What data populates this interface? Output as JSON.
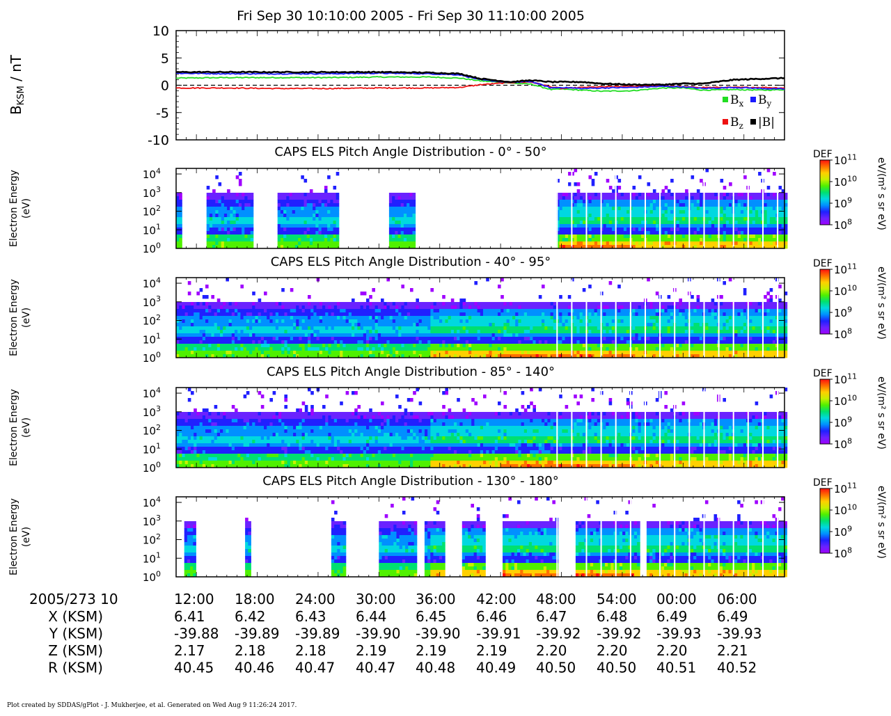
{
  "title": "Fri Sep 30 10:10:00 2005 - Fri Sep 30 11:10:00 2005",
  "footer": "Plot created by SDDAS/gPlot - J. Mukherjee, et al.  Generated on Wed Aug  9 11:26:24 2017.",
  "colors": {
    "bx": "#22dd22",
    "by": "#1a1aff",
    "bz": "#ee1111",
    "bmag": "#000000"
  },
  "time_ticks": [
    "12:00",
    "18:00",
    "24:00",
    "30:00",
    "36:00",
    "42:00",
    "48:00",
    "54:00",
    "00:00",
    "06:00"
  ],
  "ephemeris": {
    "time_label": "2005/273 10",
    "rows": [
      {
        "label": "X (KSM)",
        "values": [
          "6.41",
          "6.42",
          "6.43",
          "6.44",
          "6.45",
          "6.46",
          "6.47",
          "6.48",
          "6.49",
          "6.49"
        ]
      },
      {
        "label": "Y (KSM)",
        "values": [
          "-39.88",
          "-39.89",
          "-39.89",
          "-39.90",
          "-39.90",
          "-39.91",
          "-39.92",
          "-39.92",
          "-39.93",
          "-39.93"
        ]
      },
      {
        "label": "Z (KSM)",
        "values": [
          "2.17",
          "2.18",
          "2.18",
          "2.19",
          "2.19",
          "2.19",
          "2.20",
          "2.20",
          "2.20",
          "2.21"
        ]
      },
      {
        "label": "R (KSM)",
        "values": [
          "40.45",
          "40.46",
          "40.47",
          "40.47",
          "40.48",
          "40.49",
          "40.50",
          "40.50",
          "40.51",
          "40.52"
        ]
      }
    ]
  },
  "chart_data": [
    {
      "type": "line",
      "ylabel_main": "B",
      "ylabel_sub": "KSM",
      "ylabel_unit": " / nT",
      "ylim": [
        -10,
        10
      ],
      "yticks": [
        {
          "v": 10,
          "label": "10"
        },
        {
          "v": 5,
          "label": "5"
        },
        {
          "v": 0,
          "label": "0"
        },
        {
          "v": -5,
          "label": "-5"
        },
        {
          "v": -10,
          "label": "-10"
        }
      ],
      "x_minutes": [
        0,
        5,
        10,
        15,
        20,
        25,
        28,
        30,
        33,
        35,
        37,
        38,
        40,
        42,
        45,
        48,
        50,
        52,
        55,
        58,
        60
      ],
      "series": [
        {
          "key": "bx",
          "name": "B",
          "sub": "x",
          "values": [
            1.3,
            1.4,
            1.4,
            1.4,
            1.5,
            1.5,
            1.3,
            0.8,
            0.4,
            0.2,
            -0.8,
            -0.7,
            -0.9,
            -1.1,
            -1.0,
            -0.5,
            -0.5,
            -0.9,
            -0.8,
            -0.9,
            -0.8
          ]
        },
        {
          "key": "by",
          "name": "B",
          "sub": "y",
          "values": [
            2.2,
            2.1,
            2.1,
            2.1,
            2.2,
            2.1,
            1.9,
            1.0,
            0.5,
            0.7,
            -0.5,
            -0.4,
            -0.6,
            -0.5,
            -0.4,
            -0.2,
            -0.3,
            -0.6,
            -0.4,
            -0.6,
            -0.7
          ]
        },
        {
          "key": "bz",
          "name": "B",
          "sub": "z",
          "values": [
            -0.5,
            -0.5,
            -0.6,
            -0.6,
            -0.5,
            -0.5,
            -0.4,
            0.1,
            0.5,
            0.6,
            -0.3,
            -0.6,
            -0.4,
            -0.3,
            -0.2,
            -0.1,
            -0.3,
            -0.4,
            -0.4,
            -0.4,
            -0.5
          ]
        },
        {
          "key": "bmag",
          "name": "|B|",
          "sub": "",
          "values": [
            2.4,
            2.4,
            2.4,
            2.4,
            2.4,
            2.3,
            2.1,
            1.2,
            0.6,
            0.9,
            0.6,
            0.6,
            0.6,
            0.3,
            0.1,
            0.1,
            0.3,
            0.3,
            1.0,
            1.2,
            1.3
          ]
        }
      ],
      "zero_line": "dashed"
    },
    {
      "type": "heatmap",
      "title": "CAPS ELS Pitch Angle Distribution - 0° - 50°",
      "ylabel": [
        "Electron Energy",
        "(eV)"
      ],
      "yscale": "log",
      "yticks": [
        {
          "base": "10",
          "exp": "4"
        },
        {
          "base": "10",
          "exp": "3"
        },
        {
          "base": "10",
          "exp": "2"
        },
        {
          "base": "10",
          "exp": "1"
        },
        {
          "base": "10",
          "exp": "0"
        }
      ],
      "data_minutes": [
        [
          0,
          0.5
        ],
        [
          3,
          7.5
        ],
        [
          10,
          16
        ],
        [
          21,
          23.5
        ],
        [
          37.5,
          60
        ]
      ],
      "colorbar": {
        "label": "DEF",
        "unit": "eV/(m² s sr eV)",
        "ticks": [
          {
            "base": "10",
            "exp": "11"
          },
          {
            "base": "10",
            "exp": "10"
          },
          {
            "base": "10",
            "exp": "9"
          },
          {
            "base": "10",
            "exp": "8"
          }
        ]
      }
    },
    {
      "type": "heatmap",
      "title": "CAPS ELS Pitch Angle Distribution - 40° - 95°",
      "ylabel": [
        "Electron Energy",
        "(eV)"
      ],
      "yscale": "log",
      "yticks": [
        {
          "base": "10",
          "exp": "4"
        },
        {
          "base": "10",
          "exp": "3"
        },
        {
          "base": "10",
          "exp": "2"
        },
        {
          "base": "10",
          "exp": "1"
        },
        {
          "base": "10",
          "exp": "0"
        }
      ],
      "data_minutes": [
        [
          0,
          60
        ]
      ],
      "colorbar": {
        "label": "DEF",
        "unit": "eV/(m² s sr eV)",
        "ticks": [
          {
            "base": "10",
            "exp": "11"
          },
          {
            "base": "10",
            "exp": "10"
          },
          {
            "base": "10",
            "exp": "9"
          },
          {
            "base": "10",
            "exp": "8"
          }
        ]
      }
    },
    {
      "type": "heatmap",
      "title": "CAPS ELS Pitch Angle Distribution - 85° - 140°",
      "ylabel": [
        "Electron Energy",
        "(eV)"
      ],
      "yscale": "log",
      "yticks": [
        {
          "base": "10",
          "exp": "4"
        },
        {
          "base": "10",
          "exp": "3"
        },
        {
          "base": "10",
          "exp": "2"
        },
        {
          "base": "10",
          "exp": "1"
        },
        {
          "base": "10",
          "exp": "0"
        }
      ],
      "data_minutes": [
        [
          0,
          60
        ]
      ],
      "colorbar": {
        "label": "DEF",
        "unit": "eV/(m² s sr eV)",
        "ticks": [
          {
            "base": "10",
            "exp": "11"
          },
          {
            "base": "10",
            "exp": "10"
          },
          {
            "base": "10",
            "exp": "9"
          },
          {
            "base": "10",
            "exp": "8"
          }
        ]
      }
    },
    {
      "type": "heatmap",
      "title": "CAPS ELS Pitch Angle Distribution - 130° - 180°",
      "ylabel": [
        "Electron Energy",
        "(eV)"
      ],
      "yscale": "log",
      "yticks": [
        {
          "base": "10",
          "exp": "4"
        },
        {
          "base": "10",
          "exp": "3"
        },
        {
          "base": "10",
          "exp": "2"
        },
        {
          "base": "10",
          "exp": "1"
        },
        {
          "base": "10",
          "exp": "0"
        }
      ],
      "data_minutes": [
        [
          0.8,
          1.7
        ],
        [
          6.8,
          7.2
        ],
        [
          15.3,
          16.5
        ],
        [
          20,
          23.5
        ],
        [
          24.5,
          26.3
        ],
        [
          28.2,
          30.5
        ],
        [
          32.2,
          37.5
        ],
        [
          39.4,
          45.5
        ],
        [
          46.4,
          60
        ]
      ],
      "colorbar": {
        "label": "DEF",
        "unit": "eV/(m² s sr eV)",
        "ticks": [
          {
            "base": "10",
            "exp": "11"
          },
          {
            "base": "10",
            "exp": "10"
          },
          {
            "base": "10",
            "exp": "9"
          },
          {
            "base": "10",
            "exp": "8"
          }
        ]
      }
    }
  ]
}
